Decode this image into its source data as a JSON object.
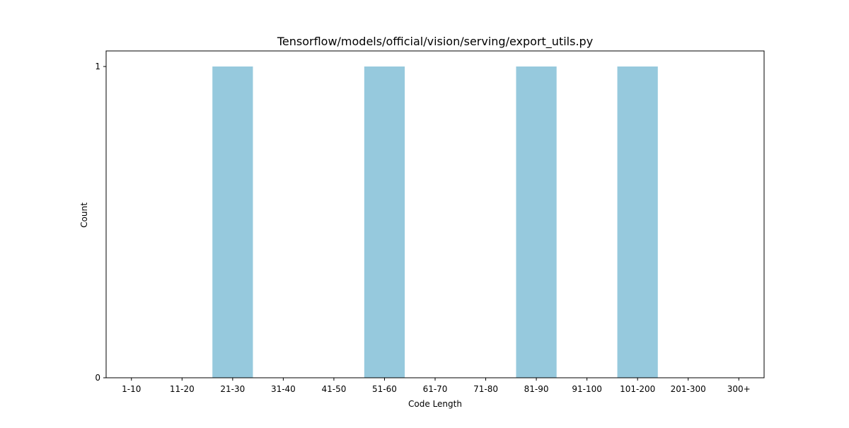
{
  "chart_data": {
    "type": "bar",
    "title": "Tensorflow/models/official/vision/serving/export_utils.py",
    "xlabel": "Code Length",
    "ylabel": "Count",
    "categories": [
      "1-10",
      "11-20",
      "21-30",
      "31-40",
      "41-50",
      "51-60",
      "61-70",
      "71-80",
      "81-90",
      "91-100",
      "101-200",
      "201-300",
      "300+"
    ],
    "values": [
      0,
      0,
      1,
      0,
      0,
      1,
      0,
      0,
      1,
      0,
      1,
      0,
      0
    ],
    "ylim": [
      0,
      1
    ],
    "yticks": [
      0,
      1
    ],
    "grid": false,
    "bar_color": "#96c9dd"
  }
}
